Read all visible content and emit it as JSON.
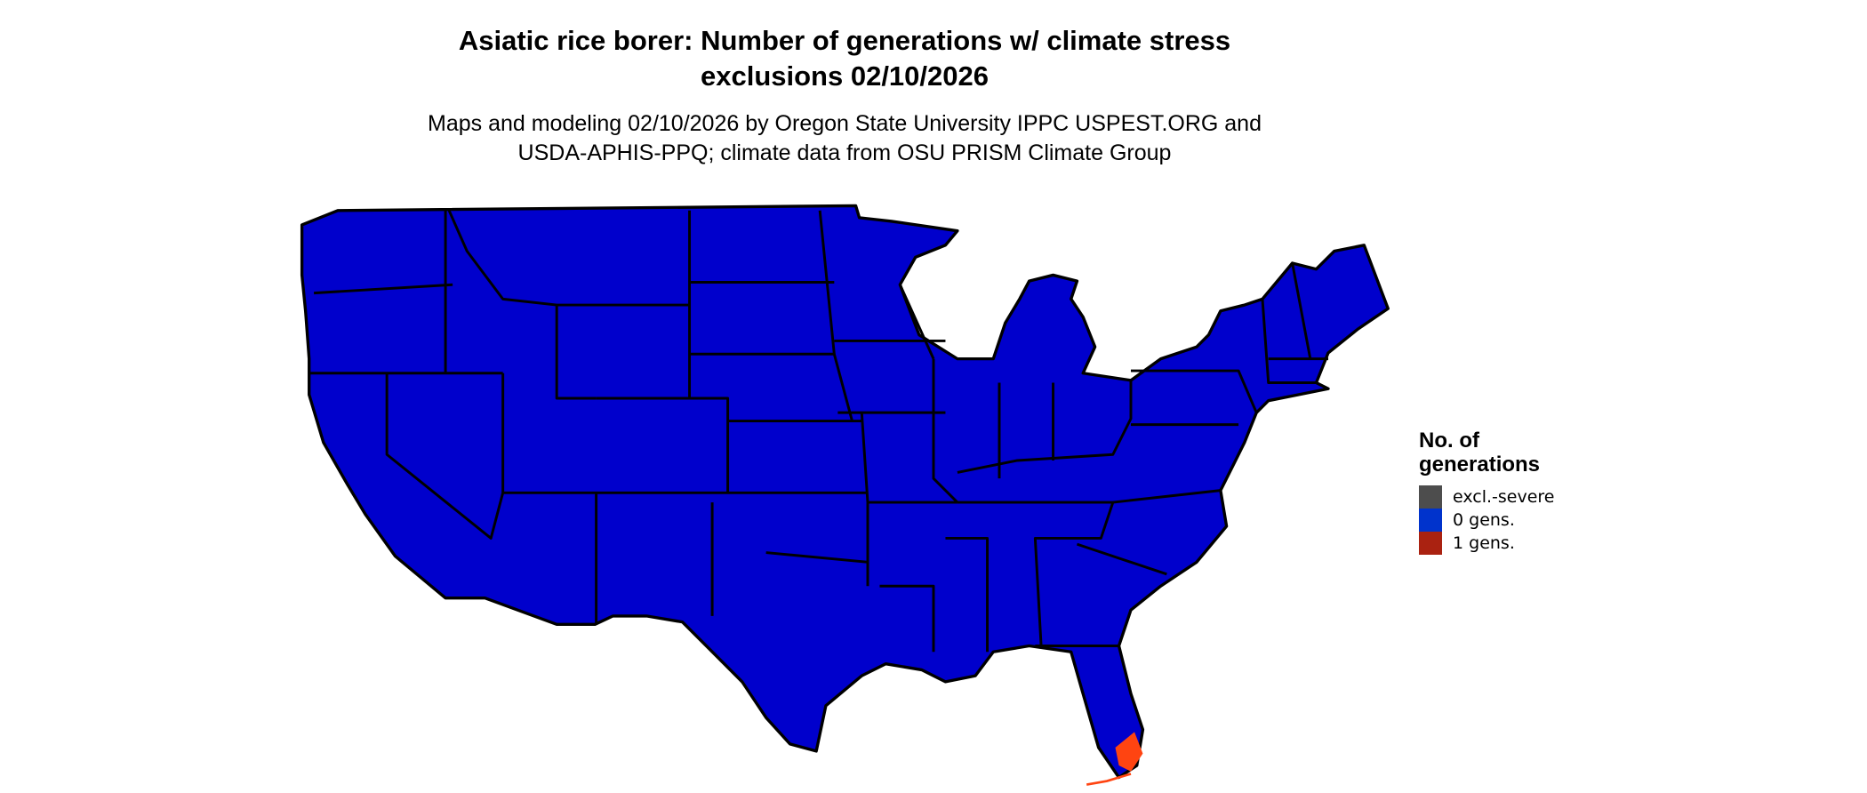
{
  "title_line1": "Asiatic rice borer: Number of generations w/ climate stress",
  "title_line2": "exclusions 02/10/2026",
  "subtitle_line1": "Maps and modeling 02/10/2026 by Oregon State University IPPC USPEST.ORG and",
  "subtitle_line2": "USDA-APHIS-PPQ; climate data from OSU PRISM Climate Group",
  "legend": {
    "title_line1": "No. of",
    "title_line2": "generations",
    "items": [
      {
        "label": "excl.-severe",
        "color": "#4d4d4d"
      },
      {
        "label": "0 gens.",
        "color": "#0033cc"
      },
      {
        "label": "1 gens.",
        "color": "#aa2211"
      }
    ]
  },
  "map_colors": {
    "fill": "#0000cc",
    "border": "#000000",
    "hot": "#ff4411"
  }
}
